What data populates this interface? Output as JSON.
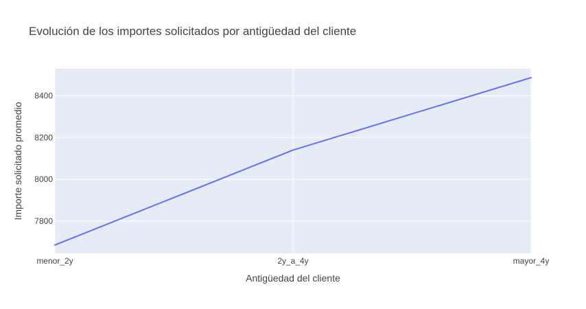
{
  "chart_data": {
    "type": "line",
    "title": "Evolución de los importes solicitados por antigüedad del cliente",
    "xlabel": "Antigüedad del cliente",
    "ylabel": "Importe solicitado promedio",
    "categories": [
      "menor_2y",
      "2y_a_4y",
      "mayor_4y"
    ],
    "series": [
      {
        "values": [
          7685,
          8140,
          8487
        ]
      }
    ],
    "ylim": [
      7645,
      8530
    ],
    "yticks": [
      7800,
      8000,
      8200,
      8400
    ],
    "grid": true,
    "colors": {
      "line": "#636efa",
      "plot_bg": "#e5ecf6",
      "grid": "#ffffff",
      "text": "#444444"
    }
  }
}
